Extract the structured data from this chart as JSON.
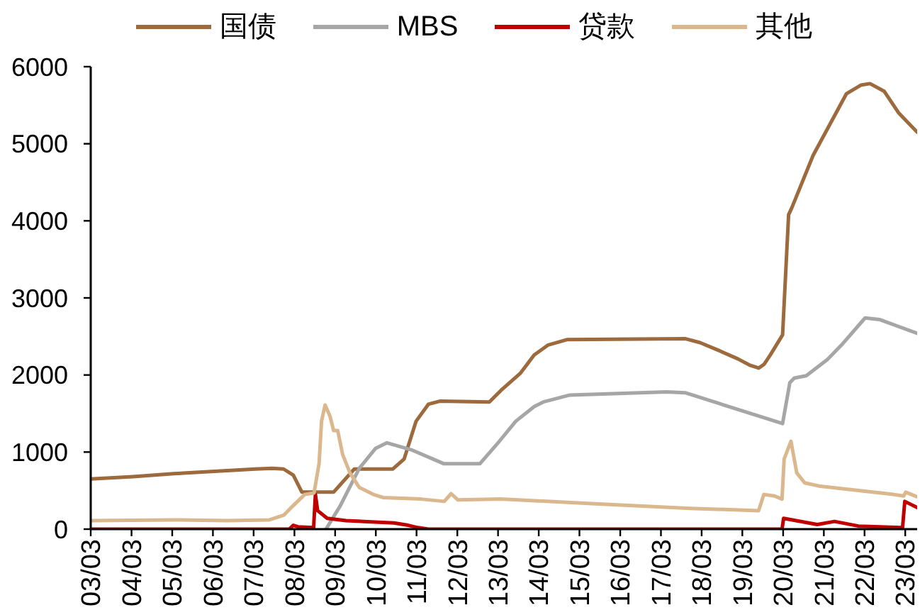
{
  "chart_data": {
    "type": "line",
    "legend": "top",
    "marker": "none",
    "line_style": "solid",
    "xlim": [
      "2003-03",
      "2023-06-16"
    ],
    "xticks": [
      {
        "value": "2003-03",
        "label": "03/03"
      },
      {
        "value": "2004-03",
        "label": "04/03"
      },
      {
        "value": "2005-03",
        "label": "05/03"
      },
      {
        "value": "2006-03",
        "label": "06/03"
      },
      {
        "value": "2007-03",
        "label": "07/03"
      },
      {
        "value": "2008-03",
        "label": "08/03"
      },
      {
        "value": "2009-03",
        "label": "09/03"
      },
      {
        "value": "2010-03",
        "label": "10/03"
      },
      {
        "value": "2011-03",
        "label": "11/03"
      },
      {
        "value": "2012-03",
        "label": "12/03"
      },
      {
        "value": "2013-03",
        "label": "13/03"
      },
      {
        "value": "2014-03",
        "label": "14/03"
      },
      {
        "value": "2015-03",
        "label": "15/03"
      },
      {
        "value": "2016-03",
        "label": "16/03"
      },
      {
        "value": "2017-03",
        "label": "17/03"
      },
      {
        "value": "2018-03",
        "label": "18/03"
      },
      {
        "value": "2019-03",
        "label": "19/03"
      },
      {
        "value": "2020-03",
        "label": "20/03"
      },
      {
        "value": "2021-03",
        "label": "21/03"
      },
      {
        "value": "2022-03",
        "label": "22/03"
      },
      {
        "value": "2023-03",
        "label": "23/03"
      }
    ],
    "ylim": [
      0,
      6000
    ],
    "yticks": [
      0,
      1000,
      2000,
      3000,
      4000,
      5000,
      6000
    ],
    "series": [
      {
        "name": "国债",
        "color": "#9c6a3c",
        "x": [
          "2003-03-01",
          "2004-03-15",
          "2005-03-15",
          "2006-03-15",
          "2007-03-15",
          "2007-08-15",
          "2007-11-25",
          "2008-02-20",
          "2008-05-07",
          "2009-02-15",
          "2009-08-20",
          "2010-08-01",
          "2010-11-10",
          "2011-02-25",
          "2011-06-15",
          "2011-09-25",
          "2012-12-13",
          "2013-03-27",
          "2013-09-16",
          "2014-01-19",
          "2014-05-25",
          "2014-11-14",
          "2017-10-08",
          "2018-02-14",
          "2018-07-30",
          "2019-01-19",
          "2019-05-03",
          "2019-07-26",
          "2019-09-13",
          "2019-11-07",
          "2020-02-25",
          "2020-04-19",
          "2020-05-18",
          "2020-11-25",
          "2021-09-20",
          "2022-01-26",
          "2022-04-19",
          "2022-08-25",
          "2023-01-01",
          "2023-06-16"
        ],
        "values": [
          650,
          680,
          720,
          750,
          780,
          790,
          780,
          700,
          480,
          480,
          780,
          780,
          910,
          1400,
          1620,
          1660,
          1650,
          1800,
          2020,
          2260,
          2390,
          2460,
          2470,
          2420,
          2320,
          2210,
          2130,
          2090,
          2140,
          2260,
          2520,
          4080,
          4170,
          4850,
          5650,
          5760,
          5780,
          5680,
          5400,
          5150
        ]
      },
      {
        "name": "MBS",
        "color": "#a6a6a6",
        "x": [
          "2008-12-09",
          "2009-04-15",
          "2009-10-04",
          "2010-02-28",
          "2010-06-09",
          "2011-01-12",
          "2011-10-30",
          "2012-09-20",
          "2013-02-18",
          "2013-08-07",
          "2014-01-19",
          "2014-04-12",
          "2014-12-06",
          "2017-04-23",
          "2017-10-04",
          "2020-02-25",
          "2020-04-30",
          "2020-06-09",
          "2020-09-24",
          "2021-04-01",
          "2021-08-07",
          "2022-03-06",
          "2022-07-12",
          "2023-06-16"
        ],
        "values": [
          0,
          300,
          790,
          1050,
          1120,
          1030,
          850,
          850,
          1100,
          1400,
          1590,
          1650,
          1740,
          1780,
          1770,
          1370,
          1900,
          1960,
          1990,
          2200,
          2390,
          2740,
          2720,
          2540
        ]
      },
      {
        "name": "贷款",
        "color": "#c00000",
        "x": [
          "2003-03-01",
          "2008-01-15",
          "2008-02-20",
          "2008-04-01",
          "2008-08-20",
          "2008-09-05",
          "2008-09-25",
          "2008-12-20",
          "2009-06-06",
          "2010-08-10",
          "2010-12-16",
          "2011-03-13",
          "2011-06-15",
          "2020-02-20",
          "2020-03-05",
          "2021-01-01",
          "2021-06-05",
          "2022-01-05",
          "2023-02-05",
          "2023-02-25",
          "2023-06-16"
        ],
        "values": [
          0,
          0,
          50,
          30,
          20,
          450,
          240,
          140,
          110,
          80,
          50,
          20,
          0,
          0,
          140,
          60,
          100,
          40,
          20,
          360,
          280
        ]
      },
      {
        "name": "其他",
        "color": "#dbb78e",
        "x": [
          "2003-03-01",
          "2005-03-20",
          "2006-07-01",
          "2007-07-20",
          "2007-11-25",
          "2008-01-25",
          "2008-06-01",
          "2008-08-24",
          "2008-10-08",
          "2008-10-30",
          "2008-12-01",
          "2009-01-15",
          "2009-02-15",
          "2009-03-24",
          "2009-05-07",
          "2009-07-12",
          "2009-10-04",
          "2010-02-07",
          "2010-05-05",
          "2011-04-10",
          "2011-11-05",
          "2012-01-05",
          "2012-03-05",
          "2013-03-25",
          "2015-07-20",
          "2017-11-20",
          "2019-07-25",
          "2019-09-10",
          "2019-12-15",
          "2020-02-20",
          "2020-03-10",
          "2020-05-10",
          "2020-07-01",
          "2020-09-10",
          "2021-01-15",
          "2022-11-15",
          "2023-02-15",
          "2023-03-05",
          "2023-06-16"
        ],
        "values": [
          110,
          120,
          110,
          120,
          180,
          270,
          450,
          470,
          850,
          1400,
          1610,
          1460,
          1280,
          1280,
          970,
          730,
          540,
          450,
          410,
          390,
          360,
          460,
          380,
          390,
          330,
          270,
          240,
          450,
          430,
          390,
          910,
          1140,
          730,
          600,
          560,
          450,
          430,
          480,
          420
        ]
      }
    ]
  }
}
